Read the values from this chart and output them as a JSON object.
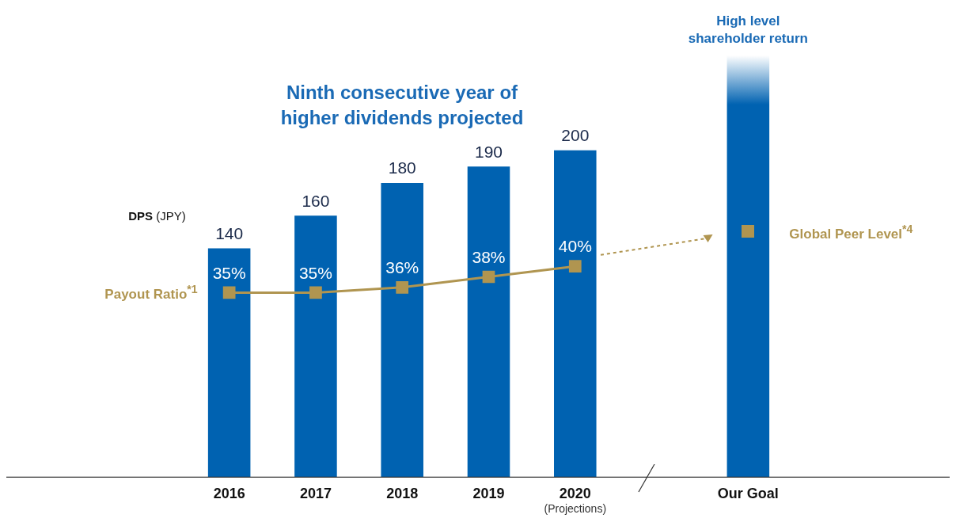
{
  "chart_data": {
    "type": "bar",
    "title": "Ninth consecutive year of\nhigher dividends projected",
    "ylabel": "DPS (JPY)",
    "categories": [
      "2016",
      "2017",
      "2018",
      "2019",
      "2020",
      null,
      "Our Goal"
    ],
    "tick_labels": "x",
    "grid": false,
    "legend": false,
    "marker": "square",
    "series": [
      {
        "color": "#0062b1",
        "values": [
          140,
          160,
          180,
          190,
          200,
          null,
          258
        ],
        "value_labels": [
          "140",
          "160",
          "180",
          "190",
          "200",
          null,
          null
        ]
      },
      {
        "type": "line",
        "name": "Payout Ratio$^{*1}$",
        "axis": "y2",
        "color": "#b09550",
        "values": [
          35,
          35,
          36,
          38,
          40,
          null,
          null
        ],
        "value_labels": [
          "35%",
          "35%",
          "36%",
          "38%",
          "40%",
          null,
          null
        ]
      }
    ],
    "annotations": [
      "(Projections)",
      "High level\nshareholder return",
      "Global Peer Level$^{*4}$"
    ]
  }
}
